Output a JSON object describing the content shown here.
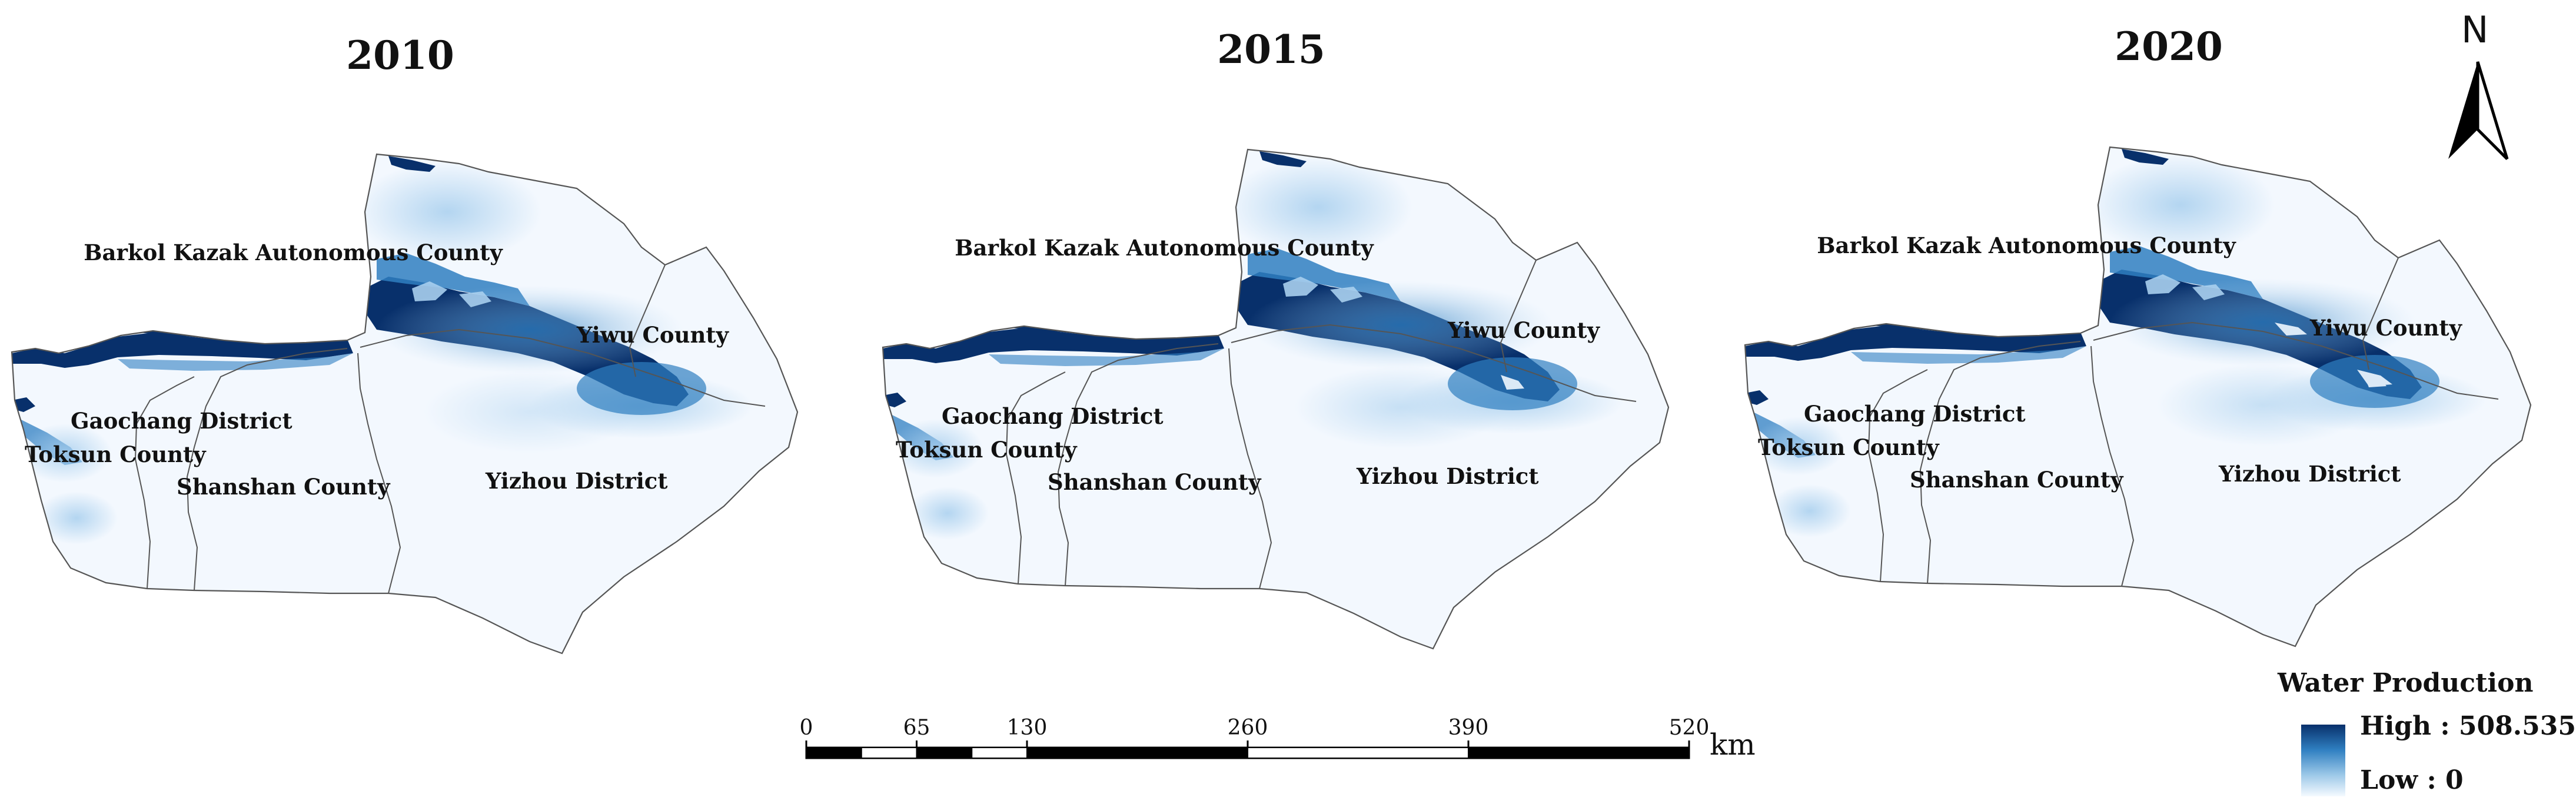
{
  "panels": [
    {
      "year": "2010",
      "variant": 0
    },
    {
      "year": "2015",
      "variant": 1
    },
    {
      "year": "2020",
      "variant": 2
    }
  ],
  "place_labels": {
    "barkol": "Barkol Kazak Autonomous County",
    "yiwu": "Yiwu County",
    "gaochang": "Gaochang District",
    "toksun": "Toksun County",
    "shanshan": "Shanshan County",
    "yizhou": "Yizhou District"
  },
  "north_arrow": {
    "letter": "N"
  },
  "scale_bar": {
    "ticks": [
      "0",
      "65",
      "130",
      "260",
      "390",
      "520"
    ],
    "unit": "km"
  },
  "legend": {
    "title": "Water Production",
    "high_label": "High : 508.535",
    "low_label": "Low : 0",
    "high_color": "#08306b",
    "low_color": "#f5faff"
  },
  "colors": {
    "dark_blue": "#08306b",
    "mid_blue": "#2f7fc1",
    "light_blue": "#a8cfee",
    "region_fill": "#f3f8fe",
    "boundary": "#555555"
  }
}
